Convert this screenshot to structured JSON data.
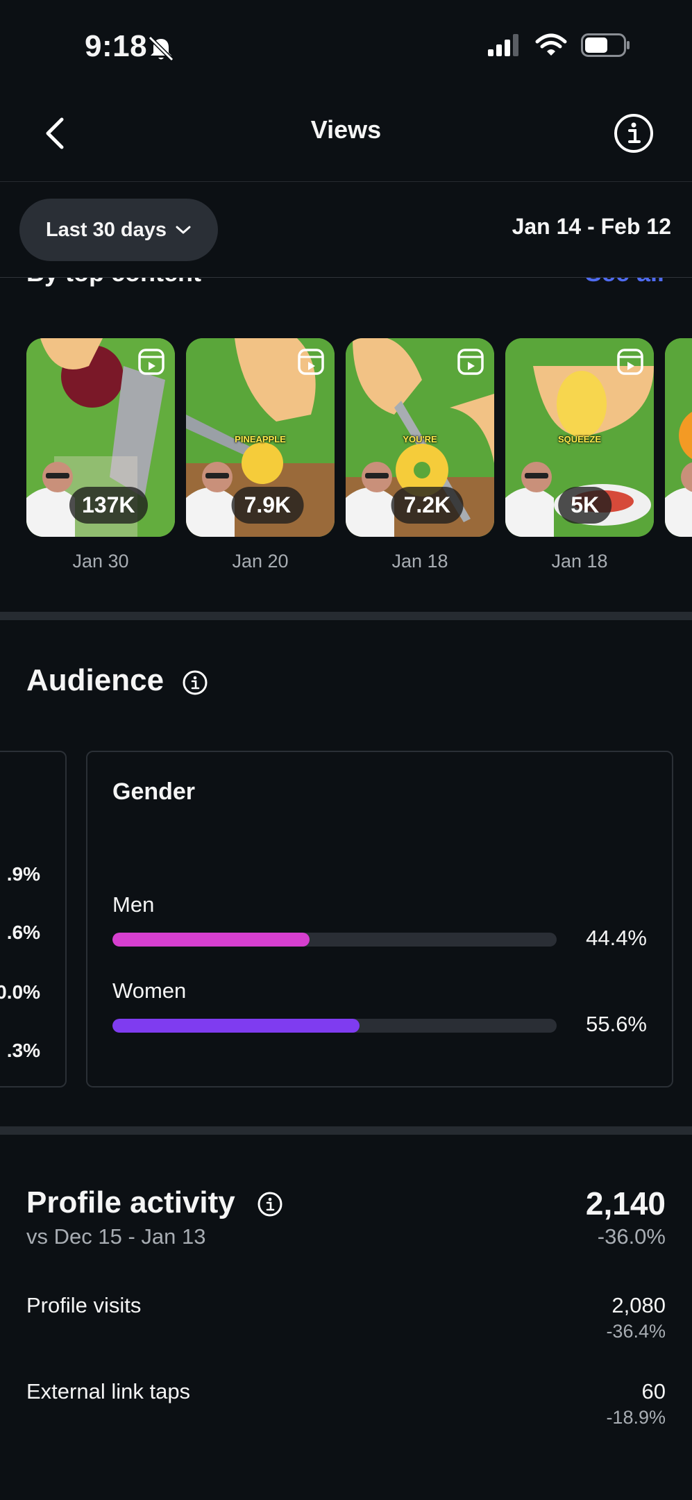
{
  "status_bar": {
    "time": "9:18"
  },
  "nav": {
    "title": "Views"
  },
  "filter": {
    "range_label": "Last 30 days",
    "date_range": "Jan 14 - Feb 12"
  },
  "top_content": {
    "section_label": "By top content",
    "see_all": "See all",
    "items": [
      {
        "count": "137K",
        "date": "Jan 30",
        "caption": ""
      },
      {
        "count": "7.9K",
        "date": "Jan 20",
        "caption": "PINEAPPLE"
      },
      {
        "count": "7.2K",
        "date": "Jan 18",
        "caption": "YOU'RE"
      },
      {
        "count": "5K",
        "date": "Jan 18",
        "caption": "SQUEEZE"
      }
    ]
  },
  "audience": {
    "title": "Audience",
    "left_card_values": [
      ".9%",
      ".6%",
      "0.0%",
      ".3%"
    ],
    "gender": {
      "title": "Gender",
      "rows": [
        {
          "label": "Men",
          "value": "44.4%",
          "fraction": 0.444,
          "color": "#d63fcf"
        },
        {
          "label": "Women",
          "value": "55.6%",
          "fraction": 0.556,
          "color": "#7f3cf0"
        }
      ]
    }
  },
  "profile_activity": {
    "title": "Profile activity",
    "total": "2,140",
    "compare_label": "vs Dec 15 - Jan 13",
    "total_change": "-36.0%",
    "rows": [
      {
        "label": "Profile visits",
        "value": "2,080",
        "change": "-36.4%"
      },
      {
        "label": "External link taps",
        "value": "60",
        "change": "-18.9%"
      }
    ]
  },
  "icons": {
    "back": "chevron-left-icon",
    "info": "info-circle-icon",
    "dropdown": "chevron-down-icon",
    "reel": "reels-icon"
  },
  "colors": {
    "accent_link": "#4f6bf0",
    "background": "#0c1014"
  }
}
